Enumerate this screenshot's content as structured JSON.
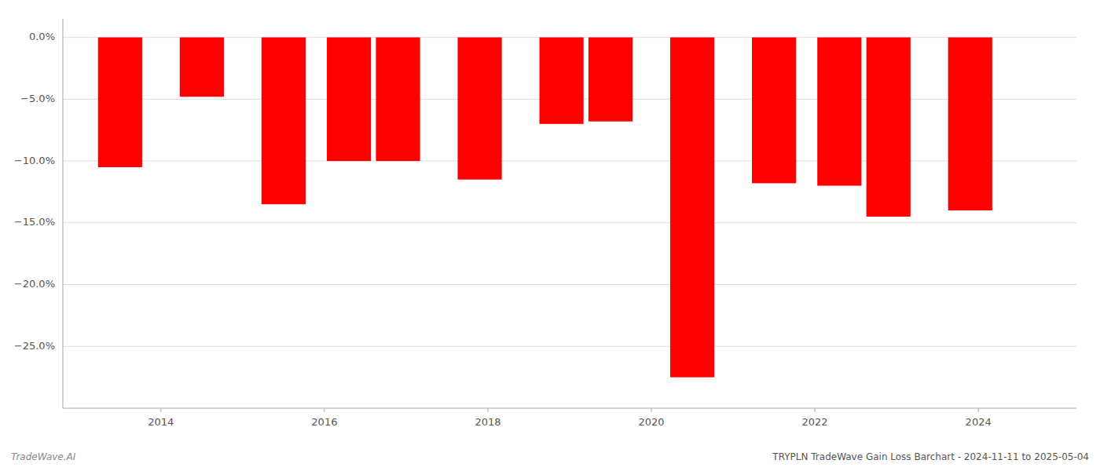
{
  "chart_data": {
    "type": "bar",
    "title": "TRYPLN TradeWave Gain Loss Barchart - 2024-11-11 to 2025-05-04",
    "annotations": [
      "TradeWave.AI"
    ],
    "x": [
      2013.5,
      2014.5,
      2015.5,
      2016.3,
      2016.9,
      2017.9,
      2018.9,
      2019.5,
      2020.5,
      2021.5,
      2022.3,
      2022.9,
      2023.9
    ],
    "values": [
      -10.5,
      -4.8,
      -13.5,
      -10.0,
      -10.0,
      -11.5,
      -7.0,
      -6.8,
      -27.5,
      -11.8,
      -12.0,
      -14.5,
      -14.0
    ],
    "color": "#ff0000",
    "xlim": [
      2012.8,
      2025.2
    ],
    "xticks": [
      2014,
      2016,
      2018,
      2020,
      2022,
      2024
    ],
    "ylim": [
      -30,
      1.5
    ],
    "yticks": [
      {
        "value": 0.0,
        "label": "0.0%"
      },
      {
        "value": -5.0,
        "label": "−5.0%"
      },
      {
        "value": -10.0,
        "label": "−10.0%"
      },
      {
        "value": -15.0,
        "label": "−15.0%"
      },
      {
        "value": -20.0,
        "label": "−20.0%"
      },
      {
        "value": -25.0,
        "label": "−25.0%"
      }
    ],
    "grid": true
  }
}
